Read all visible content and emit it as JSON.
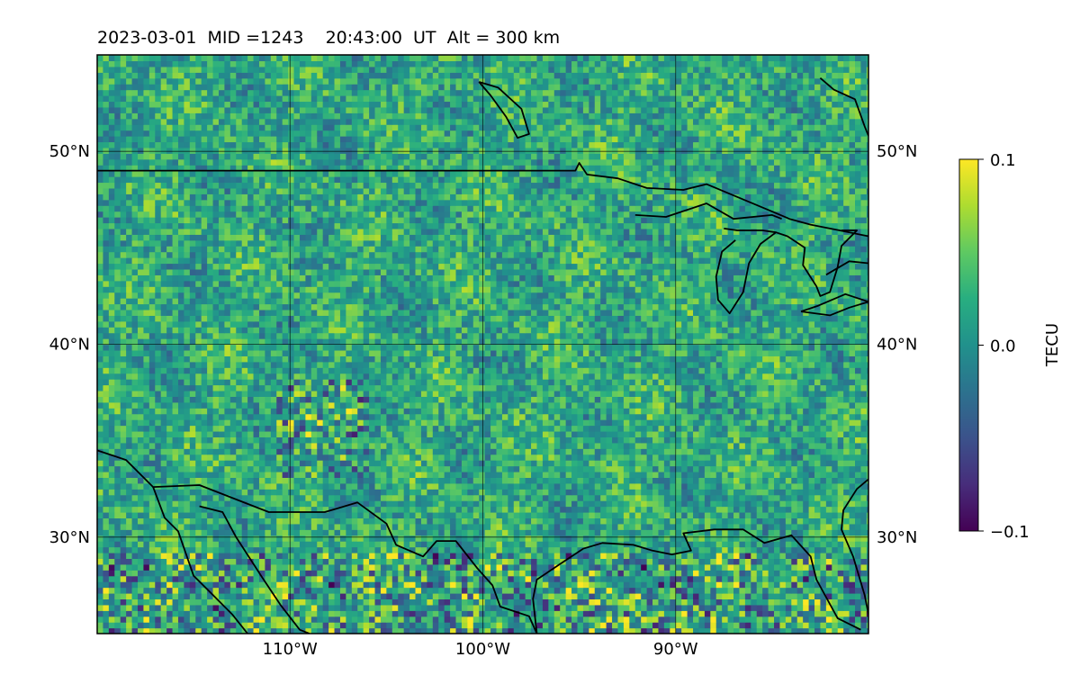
{
  "chart_data": {
    "type": "heatmap",
    "title": "2023-03-01  MID =1243    20:43:00  UT  Alt = 300 km",
    "projection": "PlateCarree map",
    "lon_range": [
      -120,
      -80
    ],
    "lat_range": [
      25,
      55
    ],
    "x_ticks": [
      {
        "value": -110,
        "label": "110°W"
      },
      {
        "value": -100,
        "label": "100°W"
      },
      {
        "value": -90,
        "label": "90°W"
      }
    ],
    "y_ticks": [
      {
        "value": 30,
        "label": "30°N"
      },
      {
        "value": 40,
        "label": "40°N"
      },
      {
        "value": 50,
        "label": "50°N"
      }
    ],
    "grid": true,
    "colormap": "viridis",
    "colorbar": {
      "label": "TECU",
      "range": [
        -0.1,
        0.1
      ],
      "ticks": [
        {
          "value": 0.1,
          "label": "0.1"
        },
        {
          "value": 0.0,
          "label": "0.0"
        },
        {
          "value": -0.1,
          "label": "−0.1"
        }
      ],
      "placement": "right"
    },
    "field_description": "Gridded differential TEC perturbation, mostly near 0 TECU with scattered positive (yellow) and negative (purple) cells; stronger negative clusters near 25–28°N and around 34–37°N, 107–110°W.",
    "coastlines": true
  }
}
